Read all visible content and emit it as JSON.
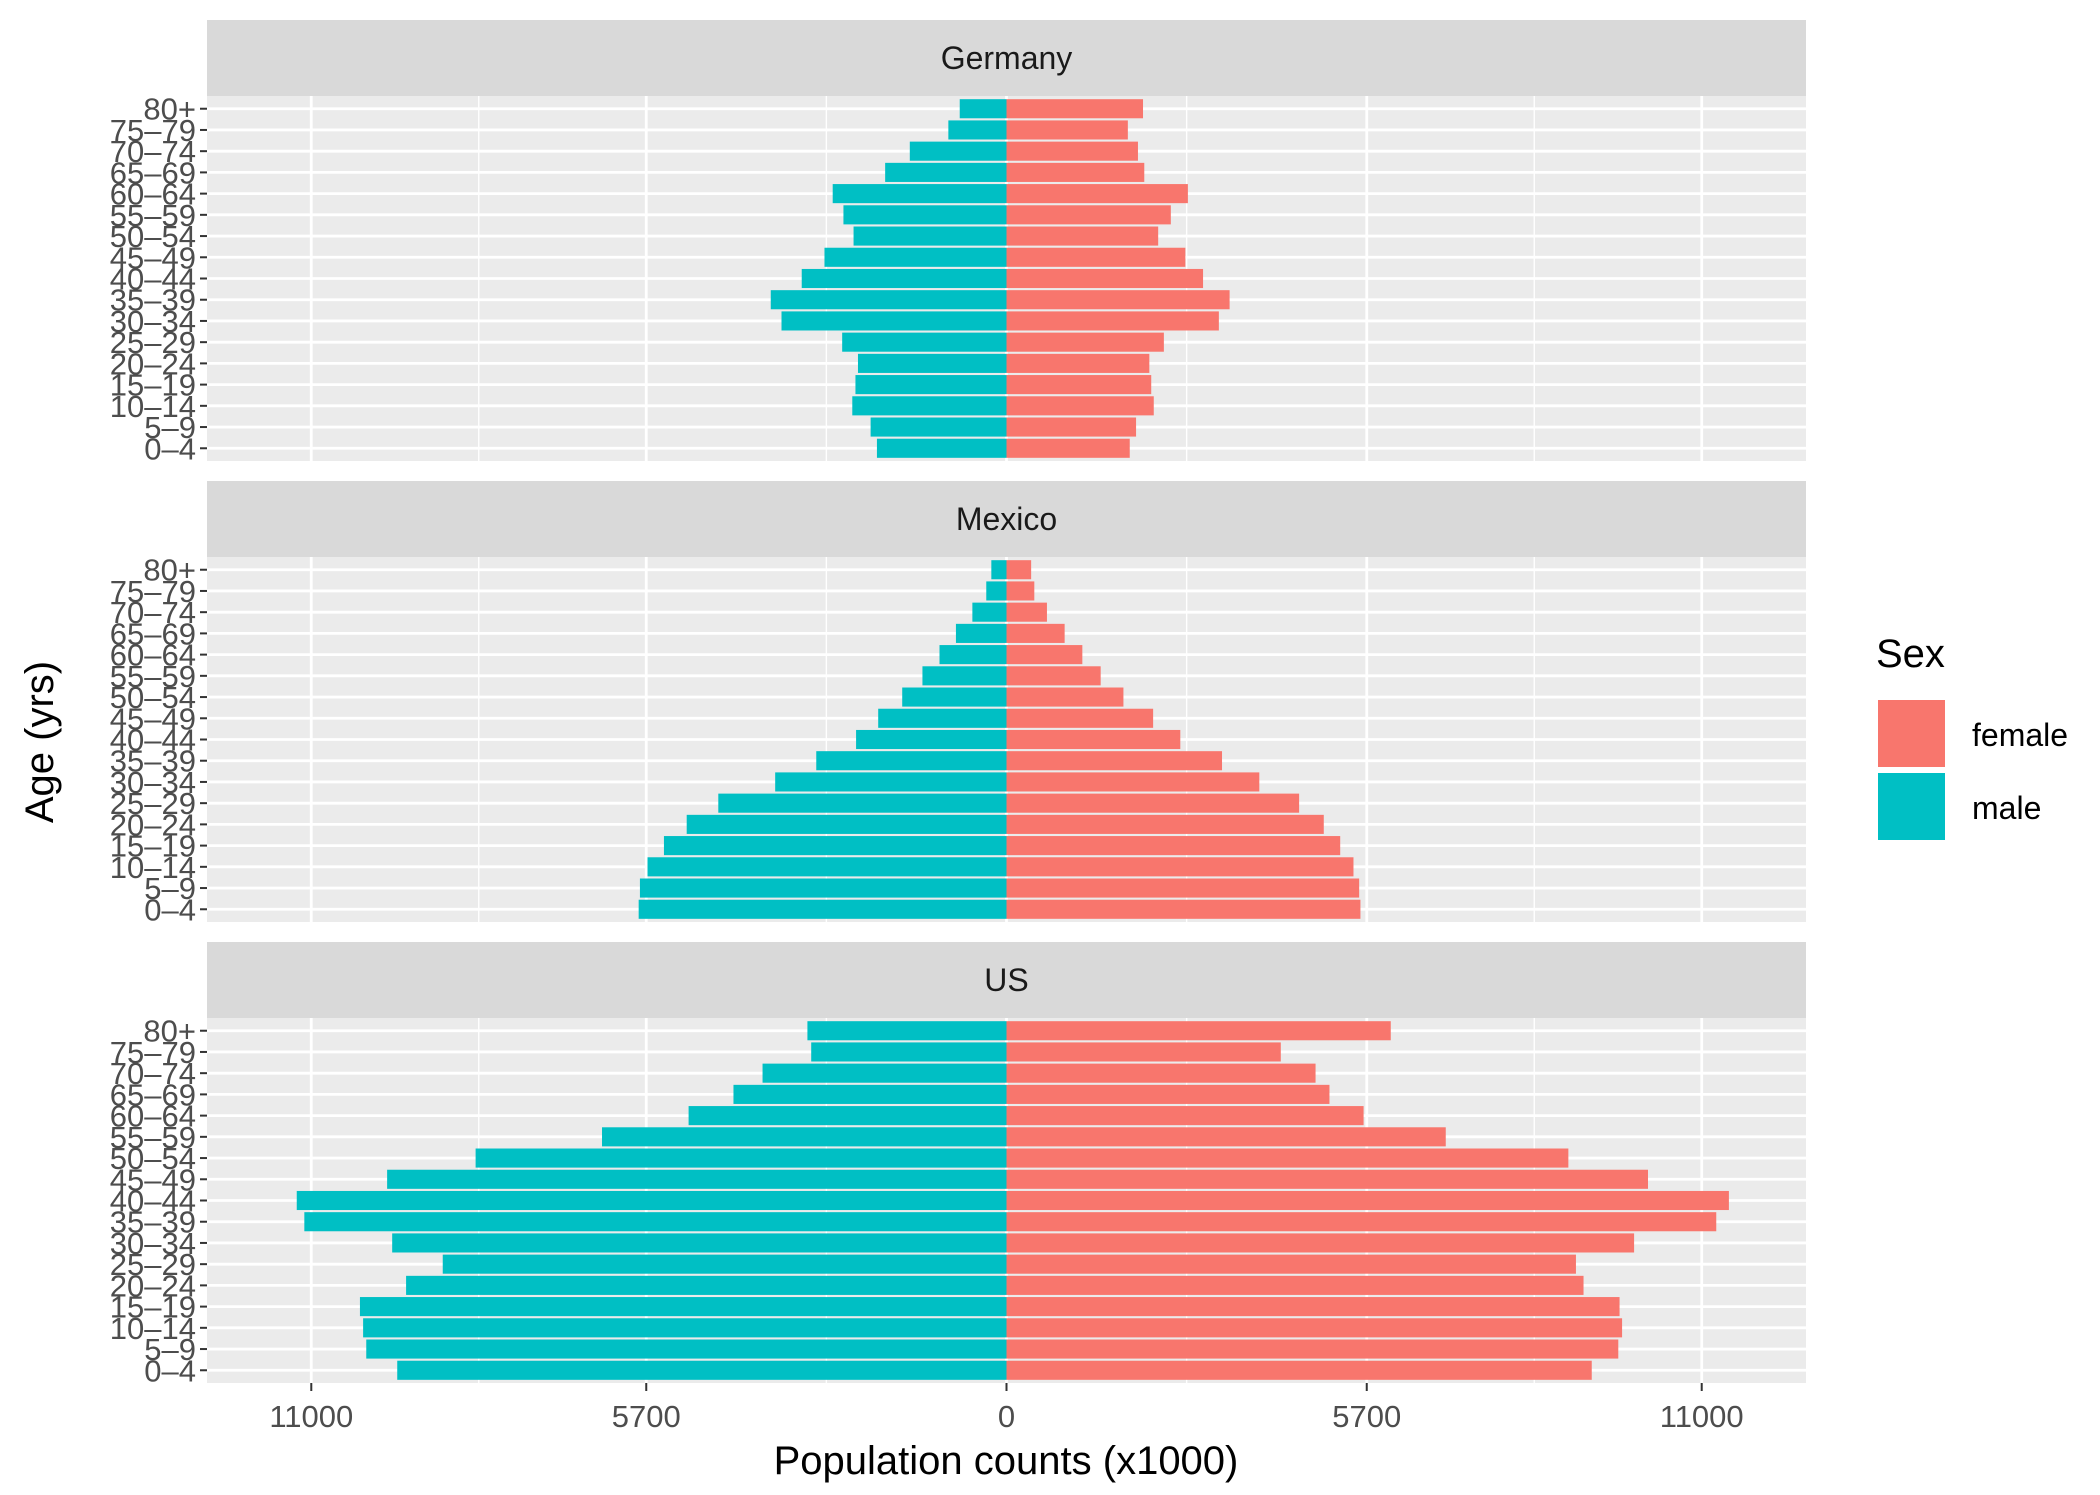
{
  "chart_data": {
    "type": "bar",
    "orientation": "horizontal",
    "subtype": "population-pyramid",
    "facets": [
      "Germany",
      "Mexico",
      "US"
    ],
    "categories": [
      "0–4",
      "5–9",
      "10–14",
      "15–19",
      "20–24",
      "25–29",
      "30–34",
      "35–39",
      "40–44",
      "45–49",
      "50–54",
      "55–59",
      "60–64",
      "65–69",
      "70–74",
      "75–79",
      "80+"
    ],
    "xlabel": "Population counts (x1000)",
    "ylabel": "Age (yrs)",
    "xlim": [
      -12650,
      12650
    ],
    "x_ticks": [
      -11000,
      -5700,
      0,
      5700,
      11000
    ],
    "x_tick_labels": [
      "11000",
      "5700",
      "0",
      "5700",
      "11000"
    ],
    "legend": {
      "title": "Sex",
      "position": "right",
      "entries": [
        {
          "name": "female",
          "color": "#F8766D"
        },
        {
          "name": "male",
          "color": "#00BFC4"
        }
      ]
    },
    "grid": true,
    "panels": [
      {
        "facet": "Germany",
        "series": [
          {
            "name": "male",
            "values": [
              2050,
              2150,
              2440,
              2390,
              2350,
              2600,
              3560,
              3730,
              3240,
              2880,
              2420,
              2580,
              2750,
              1920,
              1530,
              920,
              740
            ]
          },
          {
            "name": "female",
            "values": [
              1950,
              2050,
              2330,
              2290,
              2260,
              2490,
              3360,
              3530,
              3110,
              2830,
              2400,
              2600,
              2870,
              2180,
              2080,
              1920,
              2160
            ]
          }
        ]
      },
      {
        "facet": "Mexico",
        "series": [
          {
            "name": "male",
            "values": [
              5820,
              5800,
              5680,
              5420,
              5060,
              4560,
              3660,
              3010,
              2380,
              2030,
              1650,
              1330,
              1060,
              800,
              540,
              320,
              240
            ]
          },
          {
            "name": "female",
            "values": [
              5600,
              5580,
              5490,
              5280,
              5020,
              4630,
              4000,
              3410,
              2750,
              2320,
              1850,
              1490,
              1200,
              920,
              640,
              440,
              390
            ]
          }
        ]
      },
      {
        "facet": "US",
        "series": [
          {
            "name": "male",
            "values": [
              9640,
              10130,
              10180,
              10230,
              9500,
              8920,
              9720,
              11110,
              11230,
              9800,
              8400,
              6400,
              5030,
              4320,
              3860,
              3090,
              3150
            ]
          },
          {
            "name": "female",
            "values": [
              9260,
              9680,
              9740,
              9700,
              9130,
              9010,
              9930,
              11230,
              11430,
              10150,
              8890,
              6950,
              5650,
              5110,
              4890,
              4340,
              6080
            ]
          }
        ]
      }
    ]
  }
}
